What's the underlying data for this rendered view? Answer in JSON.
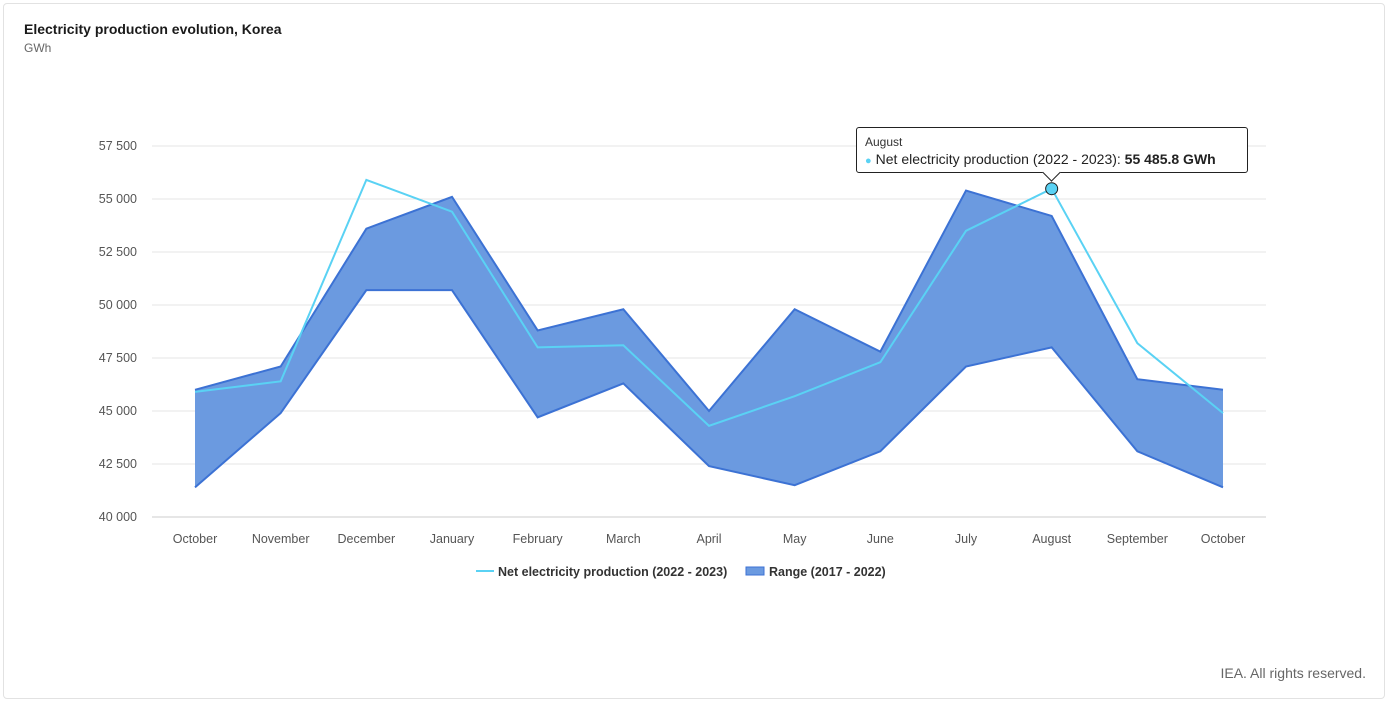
{
  "title": "Electricity production evolution, Korea",
  "subtitle": "GWh",
  "credits": "IEA. All rights reserved.",
  "colors": {
    "line": "#5ad2f4",
    "range_fill": "#6b9ae0",
    "range_stroke": "#3c72d4",
    "grid": "#e6e6e6"
  },
  "tooltip": {
    "header": "August",
    "series_label": "Net electricity production (2022 - 2023): ",
    "value_text": "55 485.8 GWh",
    "category_index": 10
  },
  "chart_data": {
    "type": "area",
    "title": "Electricity production evolution, Korea",
    "ylabel": "GWh",
    "ylim": [
      40000,
      57500
    ],
    "yticks": [
      40000,
      42500,
      45000,
      47500,
      50000,
      52500,
      55000,
      57500
    ],
    "ytick_labels": [
      "40 000",
      "42 500",
      "45 000",
      "47 500",
      "50 000",
      "52 500",
      "55 000",
      "57 500"
    ],
    "categories": [
      "October",
      "November",
      "December",
      "January",
      "February",
      "March",
      "April",
      "May",
      "June",
      "July",
      "August",
      "September",
      "October"
    ],
    "grid": true,
    "legend_position": "bottom-center",
    "series": [
      {
        "name": "Net electricity production (2022 - 2023)",
        "type": "line",
        "values": [
          45900,
          46400,
          55900,
          54400,
          48000,
          48100,
          44300,
          45700,
          47300,
          53500,
          55485.8,
          48200,
          44900
        ]
      },
      {
        "name": "Range (2017 - 2022)",
        "type": "arearange",
        "low": [
          41400,
          44900,
          50700,
          50700,
          44700,
          46300,
          42400,
          41500,
          43100,
          47100,
          48000,
          43100,
          41400
        ],
        "high": [
          46000,
          47100,
          53600,
          55100,
          48800,
          49800,
          45000,
          49800,
          47800,
          55400,
          54200,
          46500,
          46000
        ]
      }
    ]
  }
}
